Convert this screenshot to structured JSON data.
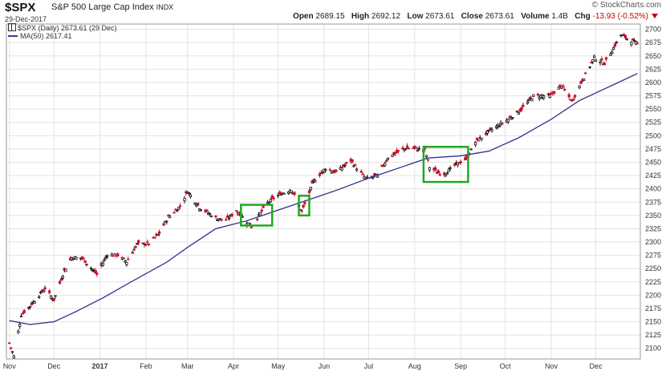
{
  "header": {
    "symbol": "$SPX",
    "name": "S&P 500 Large Cap Index",
    "exchange": "INDX",
    "date": "29-Dec-2017",
    "brand": "© StockCharts.com",
    "open_label": "Open",
    "open": "2689.15",
    "high_label": "High",
    "high": "2692.12",
    "low_label": "Low",
    "low": "2673.61",
    "close_label": "Close",
    "close": "2673.61",
    "volume_label": "Volume",
    "volume": "1.4B",
    "chg_label": "Chg",
    "chg": "-13.93 (-0.52%)"
  },
  "legend": {
    "price": "$SPX (Daily) 2673.61 (29 Dec)",
    "ma": "MA(50) 2617.41"
  },
  "colors": {
    "up": "#111111",
    "down": "#c8102e",
    "ma": "#3b3b8f",
    "box": "#21a821",
    "grid": "#e2e2e2"
  },
  "chart_data": {
    "type": "candlestick",
    "ylim": [
      2080,
      2710
    ],
    "y_ticks": [
      2100,
      2125,
      2150,
      2175,
      2200,
      2225,
      2250,
      2275,
      2300,
      2325,
      2350,
      2375,
      2400,
      2425,
      2450,
      2475,
      2500,
      2525,
      2550,
      2575,
      2600,
      2625,
      2650,
      2675,
      2700
    ],
    "x_labels": [
      "Nov",
      "Dec",
      "2017",
      "Feb",
      "Mar",
      "Apr",
      "May",
      "Jun",
      "Jul",
      "Aug",
      "Sep",
      "Oct",
      "Nov",
      "Dec"
    ],
    "price_series": {
      "name": "$SPX (Daily)",
      "close_points": [
        [
          "2016-11-01",
          2110
        ],
        [
          "2016-11-04",
          2085
        ],
        [
          "2016-11-09",
          2163
        ],
        [
          "2016-11-15",
          2180
        ],
        [
          "2016-11-25",
          2213
        ],
        [
          "2016-12-01",
          2191
        ],
        [
          "2016-12-08",
          2246
        ],
        [
          "2016-12-13",
          2271
        ],
        [
          "2016-12-20",
          2270
        ],
        [
          "2016-12-30",
          2239
        ],
        [
          "2017-01-06",
          2277
        ],
        [
          "2017-01-13",
          2275
        ],
        [
          "2017-01-19",
          2263
        ],
        [
          "2017-01-26",
          2296
        ],
        [
          "2017-02-03",
          2297
        ],
        [
          "2017-02-10",
          2316
        ],
        [
          "2017-02-16",
          2347
        ],
        [
          "2017-02-24",
          2367
        ],
        [
          "2017-03-01",
          2396
        ],
        [
          "2017-03-09",
          2365
        ],
        [
          "2017-03-21",
          2344
        ],
        [
          "2017-03-27",
          2341
        ],
        [
          "2017-04-03",
          2359
        ],
        [
          "2017-04-13",
          2329
        ],
        [
          "2017-04-24",
          2374
        ],
        [
          "2017-05-01",
          2388
        ],
        [
          "2017-05-10",
          2399
        ],
        [
          "2017-05-17",
          2357
        ],
        [
          "2017-05-25",
          2415
        ],
        [
          "2017-06-02",
          2439
        ],
        [
          "2017-06-09",
          2431
        ],
        [
          "2017-06-19",
          2453
        ],
        [
          "2017-06-29",
          2419
        ],
        [
          "2017-07-07",
          2425
        ],
        [
          "2017-07-14",
          2459
        ],
        [
          "2017-07-26",
          2477
        ],
        [
          "2017-08-08",
          2474
        ],
        [
          "2017-08-11",
          2441
        ],
        [
          "2017-08-17",
          2430
        ],
        [
          "2017-08-21",
          2428
        ],
        [
          "2017-08-29",
          2446
        ],
        [
          "2017-09-05",
          2457
        ],
        [
          "2017-09-11",
          2488
        ],
        [
          "2017-09-20",
          2508
        ],
        [
          "2017-10-02",
          2529
        ],
        [
          "2017-10-12",
          2550
        ],
        [
          "2017-10-20",
          2575
        ],
        [
          "2017-10-31",
          2575
        ],
        [
          "2017-11-08",
          2594
        ],
        [
          "2017-11-15",
          2564
        ],
        [
          "2017-11-21",
          2599
        ],
        [
          "2017-11-30",
          2647
        ],
        [
          "2017-12-07",
          2636
        ],
        [
          "2017-12-15",
          2675
        ],
        [
          "2017-12-18",
          2690
        ],
        [
          "2017-12-22",
          2683
        ],
        [
          "2017-12-29",
          2673
        ]
      ]
    },
    "ma_series": {
      "name": "MA(50)",
      "points": [
        [
          "2016-11-01",
          2152
        ],
        [
          "2016-11-15",
          2145
        ],
        [
          "2016-12-01",
          2150
        ],
        [
          "2016-12-15",
          2168
        ],
        [
          "2017-01-03",
          2195
        ],
        [
          "2017-01-20",
          2222
        ],
        [
          "2017-02-15",
          2262
        ],
        [
          "2017-03-01",
          2290
        ],
        [
          "2017-03-20",
          2325
        ],
        [
          "2017-04-10",
          2340
        ],
        [
          "2017-05-01",
          2360
        ],
        [
          "2017-05-20",
          2378
        ],
        [
          "2017-06-10",
          2398
        ],
        [
          "2017-07-01",
          2420
        ],
        [
          "2017-07-20",
          2438
        ],
        [
          "2017-08-10",
          2458
        ],
        [
          "2017-09-01",
          2462
        ],
        [
          "2017-09-20",
          2471
        ],
        [
          "2017-10-10",
          2496
        ],
        [
          "2017-11-01",
          2531
        ],
        [
          "2017-11-20",
          2566
        ],
        [
          "2017-12-10",
          2592
        ],
        [
          "2017-12-29",
          2617
        ]
      ]
    },
    "highlight_boxes": [
      {
        "x": [
          "2017-04-06",
          "2017-04-27"
        ],
        "y": [
          2331,
          2370
        ]
      },
      {
        "x": [
          "2017-05-15",
          "2017-05-22"
        ],
        "y": [
          2350,
          2387
        ]
      },
      {
        "x": [
          "2017-08-07",
          "2017-09-06"
        ],
        "y": [
          2413,
          2479
        ]
      }
    ]
  }
}
